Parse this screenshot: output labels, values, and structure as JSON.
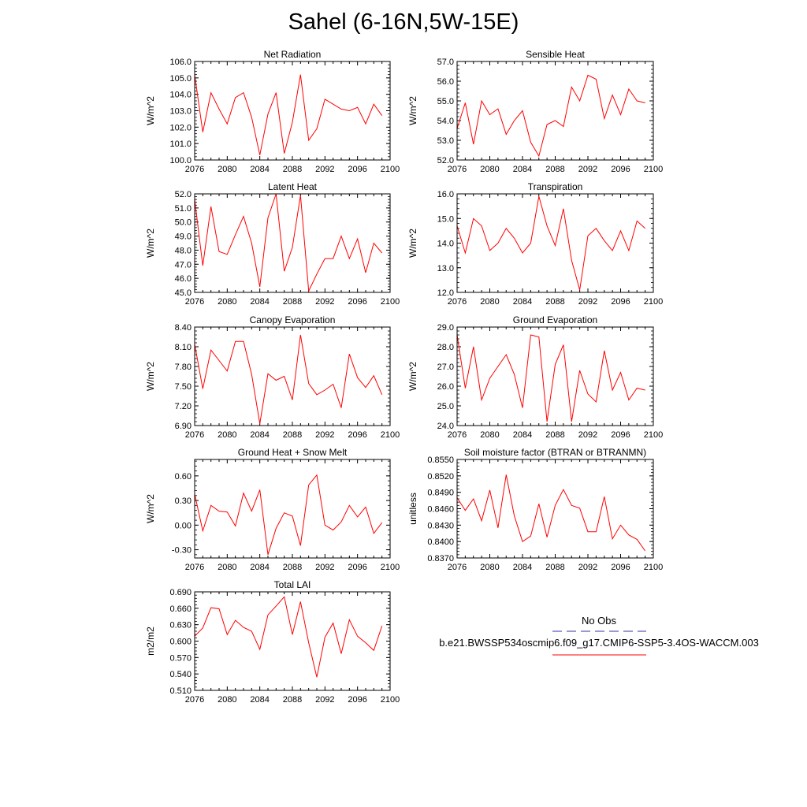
{
  "page": {
    "title": "Sahel (6-16N,5W-15E)"
  },
  "legend": {
    "obs_label": "No Obs",
    "model_label": "b.e21.BWSSP534oscmip6.f09_g17.CMIP6-SSP5-3.4OS-WACCM.003",
    "obs_color": "#3333aa",
    "model_color": "#ff0000"
  },
  "chart_data": [
    {
      "type": "line",
      "title": "Net Radiation",
      "ylabel": "W/m^2",
      "xlim": [
        2076,
        2100
      ],
      "ylim": [
        100.0,
        106.0
      ],
      "xticks": [
        "2076",
        "2080",
        "2084",
        "2088",
        "2092",
        "2096",
        "2100"
      ],
      "yticks": [
        "100.0",
        "101.0",
        "102.0",
        "103.0",
        "104.0",
        "105.0",
        "106.0"
      ],
      "series": [
        {
          "name": "b.e21.BWSSP534oscmip6.f09_g17.CMIP6-SSP5-3.4OS-WACCM.003",
          "color": "#ff0000",
          "x": [
            2076,
            2077,
            2078,
            2079,
            2080,
            2081,
            2082,
            2083,
            2084,
            2085,
            2086,
            2087,
            2088,
            2089,
            2090,
            2091,
            2092,
            2093,
            2094,
            2095,
            2096,
            2097,
            2098,
            2099
          ],
          "y": [
            105.2,
            101.7,
            104.1,
            103.1,
            102.2,
            103.8,
            104.1,
            102.6,
            100.3,
            102.8,
            104.1,
            100.4,
            102.3,
            105.2,
            101.2,
            101.9,
            103.7,
            103.4,
            103.1,
            103.0,
            103.2,
            102.2,
            103.4,
            102.7
          ]
        }
      ]
    },
    {
      "type": "line",
      "title": "Sensible Heat",
      "ylabel": "W/m^2",
      "xlim": [
        2076,
        2100
      ],
      "ylim": [
        52.0,
        57.0
      ],
      "xticks": [
        "2076",
        "2080",
        "2084",
        "2088",
        "2092",
        "2096",
        "2100"
      ],
      "yticks": [
        "52.0",
        "53.0",
        "54.0",
        "55.0",
        "56.0",
        "57.0"
      ],
      "series": [
        {
          "name": "b.e21.BWSSP534oscmip6.f09_g17.CMIP6-SSP5-3.4OS-WACCM.003",
          "color": "#ff0000",
          "x": [
            2076,
            2077,
            2078,
            2079,
            2080,
            2081,
            2082,
            2083,
            2084,
            2085,
            2086,
            2087,
            2088,
            2089,
            2090,
            2091,
            2092,
            2093,
            2094,
            2095,
            2096,
            2097,
            2098,
            2099
          ],
          "y": [
            53.6,
            54.9,
            52.8,
            55.0,
            54.3,
            54.6,
            53.3,
            54.0,
            54.5,
            52.9,
            52.2,
            53.8,
            54.0,
            53.7,
            55.7,
            55.0,
            56.3,
            56.1,
            54.1,
            55.3,
            54.3,
            55.6,
            55.0,
            54.9
          ]
        }
      ]
    },
    {
      "type": "line",
      "title": "Latent Heat",
      "ylabel": "W/m^2",
      "xlim": [
        2076,
        2100
      ],
      "ylim": [
        45.0,
        52.0
      ],
      "xticks": [
        "2076",
        "2080",
        "2084",
        "2088",
        "2092",
        "2096",
        "2100"
      ],
      "yticks": [
        "45.0",
        "46.0",
        "47.0",
        "48.0",
        "49.0",
        "50.0",
        "51.0",
        "52.0"
      ],
      "series": [
        {
          "name": "b.e21.BWSSP534oscmip6.f09_g17.CMIP6-SSP5-3.4OS-WACCM.003",
          "color": "#ff0000",
          "x": [
            2076,
            2077,
            2078,
            2079,
            2080,
            2081,
            2082,
            2083,
            2084,
            2085,
            2086,
            2087,
            2088,
            2089,
            2090,
            2091,
            2092,
            2093,
            2094,
            2095,
            2096,
            2097,
            2098,
            2099
          ],
          "y": [
            51.6,
            46.9,
            51.1,
            47.9,
            47.7,
            49.1,
            50.4,
            48.5,
            45.4,
            50.3,
            52.0,
            46.5,
            48.2,
            51.9,
            45.1,
            46.3,
            47.4,
            47.4,
            49.0,
            47.4,
            48.8,
            46.4,
            48.5,
            47.8
          ]
        }
      ]
    },
    {
      "type": "line",
      "title": "Transpiration",
      "ylabel": "W/m^2",
      "xlim": [
        2076,
        2100
      ],
      "ylim": [
        12.0,
        16.0
      ],
      "xticks": [
        "2076",
        "2080",
        "2084",
        "2088",
        "2092",
        "2096",
        "2100"
      ],
      "yticks": [
        "12.0",
        "13.0",
        "14.0",
        "15.0",
        "16.0"
      ],
      "series": [
        {
          "name": "b.e21.BWSSP534oscmip6.f09_g17.CMIP6-SSP5-3.4OS-WACCM.003",
          "color": "#ff0000",
          "x": [
            2076,
            2077,
            2078,
            2079,
            2080,
            2081,
            2082,
            2083,
            2084,
            2085,
            2086,
            2087,
            2088,
            2089,
            2090,
            2091,
            2092,
            2093,
            2094,
            2095,
            2096,
            2097,
            2098,
            2099
          ],
          "y": [
            14.7,
            13.6,
            15.0,
            14.7,
            13.7,
            14.0,
            14.6,
            14.2,
            13.6,
            14.0,
            15.9,
            14.7,
            13.9,
            15.4,
            13.3,
            12.1,
            14.3,
            14.6,
            14.1,
            13.7,
            14.5,
            13.7,
            14.9,
            14.6
          ]
        }
      ]
    },
    {
      "type": "line",
      "title": "Canopy Evaporation",
      "ylabel": "W/m^2",
      "xlim": [
        2076,
        2100
      ],
      "ylim": [
        6.9,
        8.4
      ],
      "xticks": [
        "2076",
        "2080",
        "2084",
        "2088",
        "2092",
        "2096",
        "2100"
      ],
      "yticks": [
        "6.90",
        "7.20",
        "7.50",
        "7.80",
        "8.10",
        "8.40"
      ],
      "series": [
        {
          "name": "b.e21.BWSSP534oscmip6.f09_g17.CMIP6-SSP5-3.4OS-WACCM.003",
          "color": "#ff0000",
          "x": [
            2076,
            2077,
            2078,
            2079,
            2080,
            2081,
            2082,
            2083,
            2084,
            2085,
            2086,
            2087,
            2088,
            2089,
            2090,
            2091,
            2092,
            2093,
            2094,
            2095,
            2096,
            2097,
            2098,
            2099
          ],
          "y": [
            8.14,
            7.46,
            8.05,
            7.89,
            7.73,
            8.18,
            8.18,
            7.68,
            6.93,
            7.69,
            7.59,
            7.65,
            7.29,
            8.28,
            7.54,
            7.37,
            7.44,
            7.53,
            7.17,
            7.99,
            7.63,
            7.48,
            7.66,
            7.37
          ]
        }
      ]
    },
    {
      "type": "line",
      "title": "Ground Evaporation",
      "ylabel": "W/m^2",
      "xlim": [
        2076,
        2100
      ],
      "ylim": [
        24.0,
        29.0
      ],
      "xticks": [
        "2076",
        "2080",
        "2084",
        "2088",
        "2092",
        "2096",
        "2100"
      ],
      "yticks": [
        "24.0",
        "25.0",
        "26.0",
        "27.0",
        "28.0",
        "29.0"
      ],
      "series": [
        {
          "name": "b.e21.BWSSP534oscmip6.f09_g17.CMIP6-SSP5-3.4OS-WACCM.003",
          "color": "#ff0000",
          "x": [
            2076,
            2077,
            2078,
            2079,
            2080,
            2081,
            2082,
            2083,
            2084,
            2085,
            2086,
            2087,
            2088,
            2089,
            2090,
            2091,
            2092,
            2093,
            2094,
            2095,
            2096,
            2097,
            2098,
            2099
          ],
          "y": [
            28.6,
            25.9,
            28.0,
            25.3,
            26.4,
            27.0,
            27.6,
            26.6,
            24.9,
            28.6,
            28.5,
            24.2,
            27.1,
            28.1,
            24.2,
            26.8,
            25.6,
            25.2,
            27.8,
            25.8,
            26.7,
            25.3,
            25.9,
            25.8
          ]
        }
      ]
    },
    {
      "type": "line",
      "title": "Ground Heat + Snow Melt",
      "ylabel": "W/m^2",
      "xlim": [
        2076,
        2100
      ],
      "ylim": [
        -0.4,
        0.8
      ],
      "xticks": [
        "2076",
        "2080",
        "2084",
        "2088",
        "2092",
        "2096",
        "2100"
      ],
      "yticks": [
        "-0.30",
        "0.00",
        "0.30",
        "0.60"
      ],
      "ytick_values": [
        -0.3,
        0.0,
        0.3,
        0.6
      ],
      "series": [
        {
          "name": "b.e21.BWSSP534oscmip6.f09_g17.CMIP6-SSP5-3.4OS-WACCM.003",
          "color": "#ff0000",
          "x": [
            2076,
            2077,
            2078,
            2079,
            2080,
            2081,
            2082,
            2083,
            2084,
            2085,
            2086,
            2087,
            2088,
            2089,
            2090,
            2091,
            2092,
            2093,
            2094,
            2095,
            2096,
            2097,
            2098,
            2099
          ],
          "y": [
            0.38,
            -0.07,
            0.24,
            0.17,
            0.16,
            -0.01,
            0.39,
            0.17,
            0.43,
            -0.36,
            -0.04,
            0.15,
            0.11,
            -0.25,
            0.49,
            0.61,
            0.0,
            -0.06,
            0.04,
            0.24,
            0.1,
            0.22,
            -0.1,
            0.03
          ]
        }
      ]
    },
    {
      "type": "line",
      "title": "Soil moisture factor (BTRAN or BTRANMN)",
      "ylabel": "unitless",
      "xlim": [
        2076,
        2100
      ],
      "ylim": [
        0.837,
        0.855
      ],
      "xticks": [
        "2076",
        "2080",
        "2084",
        "2088",
        "2092",
        "2096",
        "2100"
      ],
      "yticks": [
        "0.8370",
        "0.8400",
        "0.8430",
        "0.8460",
        "0.8490",
        "0.8520",
        "0.8550"
      ],
      "series": [
        {
          "name": "b.e21.BWSSP534oscmip6.f09_g17.CMIP6-SSP5-3.4OS-WACCM.003",
          "color": "#ff0000",
          "x": [
            2076,
            2077,
            2078,
            2079,
            2080,
            2081,
            2082,
            2083,
            2084,
            2085,
            2086,
            2087,
            2088,
            2089,
            2090,
            2091,
            2092,
            2093,
            2094,
            2095,
            2096,
            2097,
            2098,
            2099
          ],
          "y": [
            0.848,
            0.8457,
            0.8478,
            0.8438,
            0.8494,
            0.8425,
            0.8522,
            0.8447,
            0.84,
            0.841,
            0.8469,
            0.8408,
            0.8466,
            0.8495,
            0.8466,
            0.8461,
            0.8418,
            0.8418,
            0.8482,
            0.8405,
            0.843,
            0.8412,
            0.8404,
            0.8383
          ]
        }
      ]
    },
    {
      "type": "line",
      "title": "Total LAI",
      "ylabel": "m2/m2",
      "xlim": [
        2076,
        2100
      ],
      "ylim": [
        0.51,
        0.69
      ],
      "xticks": [
        "2076",
        "2080",
        "2084",
        "2088",
        "2092",
        "2096",
        "2100"
      ],
      "yticks": [
        "0.510",
        "0.540",
        "0.570",
        "0.600",
        "0.630",
        "0.660",
        "0.690"
      ],
      "series": [
        {
          "name": "b.e21.BWSSP534oscmip6.f09_g17.CMIP6-SSP5-3.4OS-WACCM.003",
          "color": "#ff0000",
          "x": [
            2076,
            2077,
            2078,
            2079,
            2080,
            2081,
            2082,
            2083,
            2084,
            2085,
            2086,
            2087,
            2088,
            2089,
            2090,
            2091,
            2092,
            2093,
            2094,
            2095,
            2096,
            2097,
            2098,
            2099
          ],
          "y": [
            0.609,
            0.624,
            0.661,
            0.659,
            0.612,
            0.638,
            0.625,
            0.618,
            0.585,
            0.648,
            0.664,
            0.681,
            0.612,
            0.672,
            0.597,
            0.534,
            0.607,
            0.633,
            0.577,
            0.639,
            0.609,
            0.597,
            0.583,
            0.628
          ]
        }
      ]
    }
  ]
}
